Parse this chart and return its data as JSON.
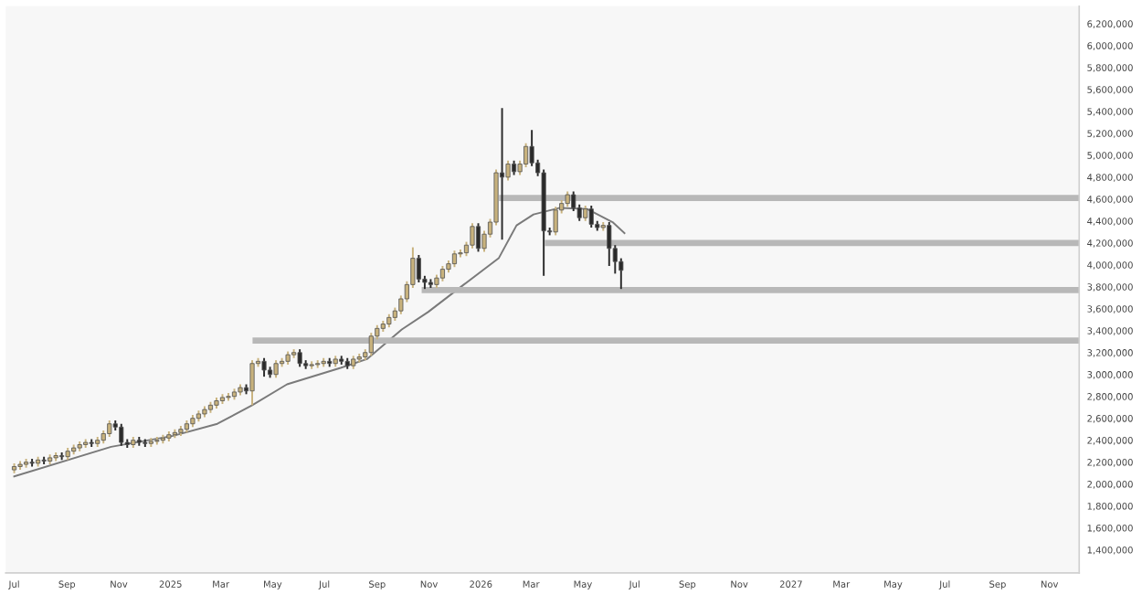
{
  "chart_data": {
    "type": "candlestick",
    "x": [
      "2024-07-01",
      "2024-07-08",
      "2024-07-15",
      "2024-07-22",
      "2024-07-29",
      "2024-08-05",
      "2024-08-12",
      "2024-08-19",
      "2024-08-26",
      "2024-09-02",
      "2024-09-09",
      "2024-09-16",
      "2024-09-23",
      "2024-09-30",
      "2024-10-07",
      "2024-10-14",
      "2024-10-21",
      "2024-10-28",
      "2024-11-04",
      "2024-11-11",
      "2024-11-18",
      "2024-11-25",
      "2024-12-02",
      "2024-12-09",
      "2024-12-16",
      "2024-12-23",
      "2024-12-30",
      "2025-01-06",
      "2025-01-13",
      "2025-01-20",
      "2025-01-27",
      "2025-02-03",
      "2025-02-10",
      "2025-02-17",
      "2025-02-24",
      "2025-03-03",
      "2025-03-10",
      "2025-03-17",
      "2025-03-24",
      "2025-03-31",
      "2025-04-07",
      "2025-04-14",
      "2025-04-21",
      "2025-04-28",
      "2025-05-05",
      "2025-05-12",
      "2025-05-19",
      "2025-05-26",
      "2025-06-02",
      "2025-06-09",
      "2025-06-16",
      "2025-06-23",
      "2025-06-30",
      "2025-07-07",
      "2025-07-14",
      "2025-07-21",
      "2025-07-28",
      "2025-08-04",
      "2025-08-11",
      "2025-08-18",
      "2025-08-25",
      "2025-09-01",
      "2025-09-08",
      "2025-09-15",
      "2025-09-22",
      "2025-09-29",
      "2025-10-06",
      "2025-10-13",
      "2025-10-20",
      "2025-10-27",
      "2025-11-03",
      "2025-11-10",
      "2025-11-17",
      "2025-11-24",
      "2025-12-01",
      "2025-12-08",
      "2025-12-15",
      "2025-12-22",
      "2025-12-29",
      "2026-01-05",
      "2026-01-12",
      "2026-01-19",
      "2026-01-26",
      "2026-02-02",
      "2026-02-09",
      "2026-02-16",
      "2026-02-23",
      "2026-03-02",
      "2026-03-09",
      "2026-03-16",
      "2026-03-23",
      "2026-03-30",
      "2026-04-06",
      "2026-04-13",
      "2026-04-20",
      "2026-04-27",
      "2026-05-04",
      "2026-05-11",
      "2026-05-18",
      "2026-05-25",
      "2026-06-01",
      "2026-06-08",
      "2026-06-15"
    ],
    "ohlc": [
      [
        2130000,
        2190000,
        2100000,
        2160000
      ],
      [
        2160000,
        2210000,
        2130000,
        2180000
      ],
      [
        2180000,
        2230000,
        2150000,
        2200000
      ],
      [
        2200000,
        2230000,
        2160000,
        2190000
      ],
      [
        2190000,
        2250000,
        2160000,
        2220000
      ],
      [
        2220000,
        2250000,
        2180000,
        2210000
      ],
      [
        2210000,
        2270000,
        2180000,
        2240000
      ],
      [
        2240000,
        2290000,
        2210000,
        2260000
      ],
      [
        2260000,
        2290000,
        2220000,
        2250000
      ],
      [
        2250000,
        2330000,
        2220000,
        2300000
      ],
      [
        2300000,
        2360000,
        2270000,
        2330000
      ],
      [
        2330000,
        2390000,
        2300000,
        2360000
      ],
      [
        2360000,
        2410000,
        2330000,
        2380000
      ],
      [
        2380000,
        2410000,
        2340000,
        2370000
      ],
      [
        2370000,
        2430000,
        2340000,
        2400000
      ],
      [
        2400000,
        2490000,
        2370000,
        2460000
      ],
      [
        2460000,
        2580000,
        2430000,
        2550000
      ],
      [
        2550000,
        2580000,
        2490000,
        2520000
      ],
      [
        2520000,
        2550000,
        2350000,
        2380000
      ],
      [
        2380000,
        2410000,
        2330000,
        2360000
      ],
      [
        2360000,
        2430000,
        2330000,
        2400000
      ],
      [
        2400000,
        2430000,
        2350000,
        2380000
      ],
      [
        2380000,
        2410000,
        2340000,
        2370000
      ],
      [
        2370000,
        2420000,
        2340000,
        2390000
      ],
      [
        2390000,
        2430000,
        2360000,
        2400000
      ],
      [
        2400000,
        2450000,
        2370000,
        2420000
      ],
      [
        2420000,
        2480000,
        2390000,
        2450000
      ],
      [
        2450000,
        2500000,
        2420000,
        2470000
      ],
      [
        2470000,
        2530000,
        2440000,
        2500000
      ],
      [
        2500000,
        2580000,
        2470000,
        2550000
      ],
      [
        2550000,
        2630000,
        2520000,
        2600000
      ],
      [
        2600000,
        2670000,
        2570000,
        2640000
      ],
      [
        2640000,
        2710000,
        2610000,
        2680000
      ],
      [
        2680000,
        2750000,
        2650000,
        2720000
      ],
      [
        2720000,
        2790000,
        2690000,
        2760000
      ],
      [
        2760000,
        2820000,
        2730000,
        2790000
      ],
      [
        2790000,
        2830000,
        2760000,
        2800000
      ],
      [
        2800000,
        2870000,
        2770000,
        2840000
      ],
      [
        2840000,
        2910000,
        2810000,
        2880000
      ],
      [
        2880000,
        2910000,
        2820000,
        2850000
      ],
      [
        2850000,
        3130000,
        2720000,
        3100000
      ],
      [
        3100000,
        3150000,
        3070000,
        3120000
      ],
      [
        3120000,
        3150000,
        2980000,
        3040000
      ],
      [
        3040000,
        3070000,
        2970000,
        3000000
      ],
      [
        3000000,
        3130000,
        2970000,
        3100000
      ],
      [
        3100000,
        3150000,
        3070000,
        3120000
      ],
      [
        3120000,
        3210000,
        3090000,
        3180000
      ],
      [
        3180000,
        3230000,
        3150000,
        3200000
      ],
      [
        3200000,
        3230000,
        3070000,
        3100000
      ],
      [
        3100000,
        3130000,
        3050000,
        3080000
      ],
      [
        3080000,
        3120000,
        3050000,
        3090000
      ],
      [
        3090000,
        3130000,
        3060000,
        3100000
      ],
      [
        3100000,
        3150000,
        3070000,
        3120000
      ],
      [
        3120000,
        3150000,
        3070000,
        3100000
      ],
      [
        3100000,
        3170000,
        3070000,
        3140000
      ],
      [
        3140000,
        3170000,
        3090000,
        3120000
      ],
      [
        3120000,
        3150000,
        3050000,
        3080000
      ],
      [
        3080000,
        3170000,
        3050000,
        3140000
      ],
      [
        3140000,
        3190000,
        3110000,
        3160000
      ],
      [
        3160000,
        3230000,
        3130000,
        3200000
      ],
      [
        3200000,
        3380000,
        3170000,
        3350000
      ],
      [
        3350000,
        3450000,
        3320000,
        3420000
      ],
      [
        3420000,
        3490000,
        3390000,
        3460000
      ],
      [
        3460000,
        3550000,
        3430000,
        3520000
      ],
      [
        3520000,
        3610000,
        3490000,
        3580000
      ],
      [
        3580000,
        3720000,
        3550000,
        3690000
      ],
      [
        3690000,
        3850000,
        3660000,
        3820000
      ],
      [
        3820000,
        4160000,
        3790000,
        4060000
      ],
      [
        4060000,
        4090000,
        3840000,
        3870000
      ],
      [
        3870000,
        3900000,
        3780000,
        3840000
      ],
      [
        3840000,
        3870000,
        3790000,
        3820000
      ],
      [
        3820000,
        3910000,
        3790000,
        3880000
      ],
      [
        3880000,
        3990000,
        3850000,
        3960000
      ],
      [
        3960000,
        4040000,
        3930000,
        4010000
      ],
      [
        4010000,
        4130000,
        3980000,
        4100000
      ],
      [
        4100000,
        4140000,
        4070000,
        4110000
      ],
      [
        4110000,
        4210000,
        4080000,
        4180000
      ],
      [
        4180000,
        4380000,
        4150000,
        4350000
      ],
      [
        4350000,
        4380000,
        4120000,
        4150000
      ],
      [
        4150000,
        4310000,
        4120000,
        4280000
      ],
      [
        4280000,
        4420000,
        4250000,
        4390000
      ],
      [
        4390000,
        4870000,
        4360000,
        4840000
      ],
      [
        4840000,
        5430000,
        4230000,
        4800000
      ],
      [
        4800000,
        4950000,
        4770000,
        4920000
      ],
      [
        4920000,
        4950000,
        4820000,
        4850000
      ],
      [
        4850000,
        4950000,
        4820000,
        4920000
      ],
      [
        4920000,
        5110000,
        4890000,
        5080000
      ],
      [
        5080000,
        5230000,
        4900000,
        4930000
      ],
      [
        4930000,
        4960000,
        4810000,
        4840000
      ],
      [
        4840000,
        4870000,
        3900000,
        4310000
      ],
      [
        4310000,
        4340000,
        4270000,
        4300000
      ],
      [
        4300000,
        4530000,
        4270000,
        4500000
      ],
      [
        4500000,
        4590000,
        4470000,
        4560000
      ],
      [
        4560000,
        4670000,
        4530000,
        4640000
      ],
      [
        4640000,
        4670000,
        4490000,
        4520000
      ],
      [
        4520000,
        4550000,
        4400000,
        4430000
      ],
      [
        4430000,
        4540000,
        4400000,
        4510000
      ],
      [
        4510000,
        4540000,
        4340000,
        4370000
      ],
      [
        4370000,
        4400000,
        4310000,
        4340000
      ],
      [
        4340000,
        4390000,
        4310000,
        4360000
      ],
      [
        4360000,
        4390000,
        3990000,
        4150000
      ],
      [
        4150000,
        4180000,
        3920000,
        4030000
      ],
      [
        4030000,
        4060000,
        3780000,
        3950000
      ]
    ],
    "colors": [
      "#c8b27d",
      "#c8b27d",
      "#c8b27d",
      "#2a2a2a",
      "#c8b27d",
      "#2a2a2a",
      "#c8b27d",
      "#c8b27d",
      "#2a2a2a",
      "#c8b27d",
      "#c8b27d",
      "#c8b27d",
      "#c8b27d",
      "#2a2a2a",
      "#c8b27d",
      "#c8b27d",
      "#c8b27d",
      "#2a2a2a",
      "#2a2a2a",
      "#2a2a2a",
      "#c8b27d",
      "#2a2a2a",
      "#2a2a2a",
      "#c8b27d",
      "#c8b27d",
      "#c8b27d",
      "#c8b27d",
      "#c8b27d",
      "#c8b27d",
      "#c8b27d",
      "#c8b27d",
      "#c8b27d",
      "#c8b27d",
      "#c8b27d",
      "#c8b27d",
      "#c8b27d",
      "#c8b27d",
      "#c8b27d",
      "#c8b27d",
      "#2a2a2a",
      "#c8b27d",
      "#c8b27d",
      "#2a2a2a",
      "#2a2a2a",
      "#c8b27d",
      "#c8b27d",
      "#c8b27d",
      "#c8b27d",
      "#2a2a2a",
      "#2a2a2a",
      "#c8b27d",
      "#c8b27d",
      "#c8b27d",
      "#2a2a2a",
      "#c8b27d",
      "#2a2a2a",
      "#2a2a2a",
      "#c8b27d",
      "#c8b27d",
      "#c8b27d",
      "#c8b27d",
      "#c8b27d",
      "#c8b27d",
      "#c8b27d",
      "#c8b27d",
      "#c8b27d",
      "#c8b27d",
      "#c8b27d",
      "#2a2a2a",
      "#2a2a2a",
      "#2a2a2a",
      "#c8b27d",
      "#c8b27d",
      "#c8b27d",
      "#c8b27d",
      "#c8b27d",
      "#c8b27d",
      "#c8b27d",
      "#2a2a2a",
      "#c8b27d",
      "#c8b27d",
      "#c8b27d",
      "#2a2a2a",
      "#c8b27d",
      "#2a2a2a",
      "#c8b27d",
      "#c8b27d",
      "#2a2a2a",
      "#2a2a2a",
      "#2a2a2a",
      "#2a2a2a",
      "#c8b27d",
      "#c8b27d",
      "#c8b27d",
      "#2a2a2a",
      "#2a2a2a",
      "#c8b27d",
      "#2a2a2a",
      "#2a2a2a",
      "#c8b27d",
      "#2a2a2a",
      "#2a2a2a",
      "#2a2a2a"
    ],
    "series": [
      {
        "type": "line",
        "color": "#7a7a7a",
        "x": [
          "2024-07-01",
          "2024-10-23",
          "2025-01-04",
          "2025-02-25",
          "2025-04-07",
          "2025-05-18",
          "2025-07-20",
          "2025-08-20",
          "2025-09-30",
          "2025-10-31",
          "2025-12-12",
          "2026-01-22",
          "2026-02-12",
          "2026-03-04",
          "2026-04-04",
          "2026-05-06",
          "2026-06-05",
          "2026-06-19"
        ],
        "values": [
          2070000,
          2340000,
          2440000,
          2550000,
          2720000,
          2910000,
          3060000,
          3140000,
          3410000,
          3570000,
          3820000,
          4060000,
          4360000,
          4460000,
          4520000,
          4510000,
          4390000,
          4290000
        ]
      },
      {
        "type": "line",
        "color": "#b8b8b8",
        "x": [
          "2025-04-11",
          "2027-12-06"
        ],
        "values": [
          3310000,
          3310000
        ]
      },
      {
        "type": "line",
        "color": "#b8b8b8",
        "x": [
          "2025-10-27",
          "2027-12-06"
        ],
        "values": [
          3770000,
          3770000
        ]
      },
      {
        "type": "line",
        "color": "#b8b8b8",
        "x": [
          "2026-03-21",
          "2027-12-06"
        ],
        "values": [
          4200000,
          4200000
        ]
      },
      {
        "type": "line",
        "color": "#b8b8b8",
        "x": [
          "2026-01-26",
          "2027-12-06"
        ],
        "values": [
          4610000,
          4610000
        ]
      }
    ],
    "xlim": [
      "2024-06-21",
      "2027-12-06"
    ],
    "xticks": [
      {
        "value": "2024-07-01",
        "label": "Jul"
      },
      {
        "value": "2024-09-01",
        "label": "Sep"
      },
      {
        "value": "2024-11-01",
        "label": "Nov"
      },
      {
        "value": "2025-01-01",
        "label": "2025"
      },
      {
        "value": "2025-03-01",
        "label": "Mar"
      },
      {
        "value": "2025-05-01",
        "label": "May"
      },
      {
        "value": "2025-07-01",
        "label": "Jul"
      },
      {
        "value": "2025-09-01",
        "label": "Sep"
      },
      {
        "value": "2025-11-01",
        "label": "Nov"
      },
      {
        "value": "2026-01-01",
        "label": "2026"
      },
      {
        "value": "2026-03-01",
        "label": "Mar"
      },
      {
        "value": "2026-05-01",
        "label": "May"
      },
      {
        "value": "2026-07-01",
        "label": "Jul"
      },
      {
        "value": "2026-09-01",
        "label": "Sep"
      },
      {
        "value": "2026-11-01",
        "label": "Nov"
      },
      {
        "value": "2027-01-01",
        "label": "2027"
      },
      {
        "value": "2027-03-01",
        "label": "Mar"
      },
      {
        "value": "2027-05-01",
        "label": "May"
      },
      {
        "value": "2027-07-01",
        "label": "Jul"
      },
      {
        "value": "2027-09-01",
        "label": "Sep"
      },
      {
        "value": "2027-11-01",
        "label": "Nov"
      }
    ],
    "ylim": [
      1190000,
      6360000
    ],
    "yticks": [
      {
        "value": 1400000,
        "label": "1,400,000"
      },
      {
        "value": 1600000,
        "label": "1,600,000"
      },
      {
        "value": 1800000,
        "label": "1,800,000"
      },
      {
        "value": 2000000,
        "label": "2,000,000"
      },
      {
        "value": 2200000,
        "label": "2,200,000"
      },
      {
        "value": 2400000,
        "label": "2,400,000"
      },
      {
        "value": 2600000,
        "label": "2,600,000"
      },
      {
        "value": 2800000,
        "label": "2,800,000"
      },
      {
        "value": 3000000,
        "label": "3,000,000"
      },
      {
        "value": 3200000,
        "label": "3,200,000"
      },
      {
        "value": 3400000,
        "label": "3,400,000"
      },
      {
        "value": 3600000,
        "label": "3,600,000"
      },
      {
        "value": 3800000,
        "label": "3,800,000"
      },
      {
        "value": 4000000,
        "label": "4,000,000"
      },
      {
        "value": 4200000,
        "label": "4,200,000"
      },
      {
        "value": 4400000,
        "label": "4,400,000"
      },
      {
        "value": 4600000,
        "label": "4,600,000"
      },
      {
        "value": 4800000,
        "label": "4,800,000"
      },
      {
        "value": 5000000,
        "label": "5,000,000"
      },
      {
        "value": 5200000,
        "label": "5,200,000"
      },
      {
        "value": 5400000,
        "label": "5,400,000"
      },
      {
        "value": 5600000,
        "label": "5,600,000"
      },
      {
        "value": 5800000,
        "label": "5,800,000"
      },
      {
        "value": 6000000,
        "label": "6,000,000"
      },
      {
        "value": 6200000,
        "label": "6,200,000"
      }
    ]
  }
}
